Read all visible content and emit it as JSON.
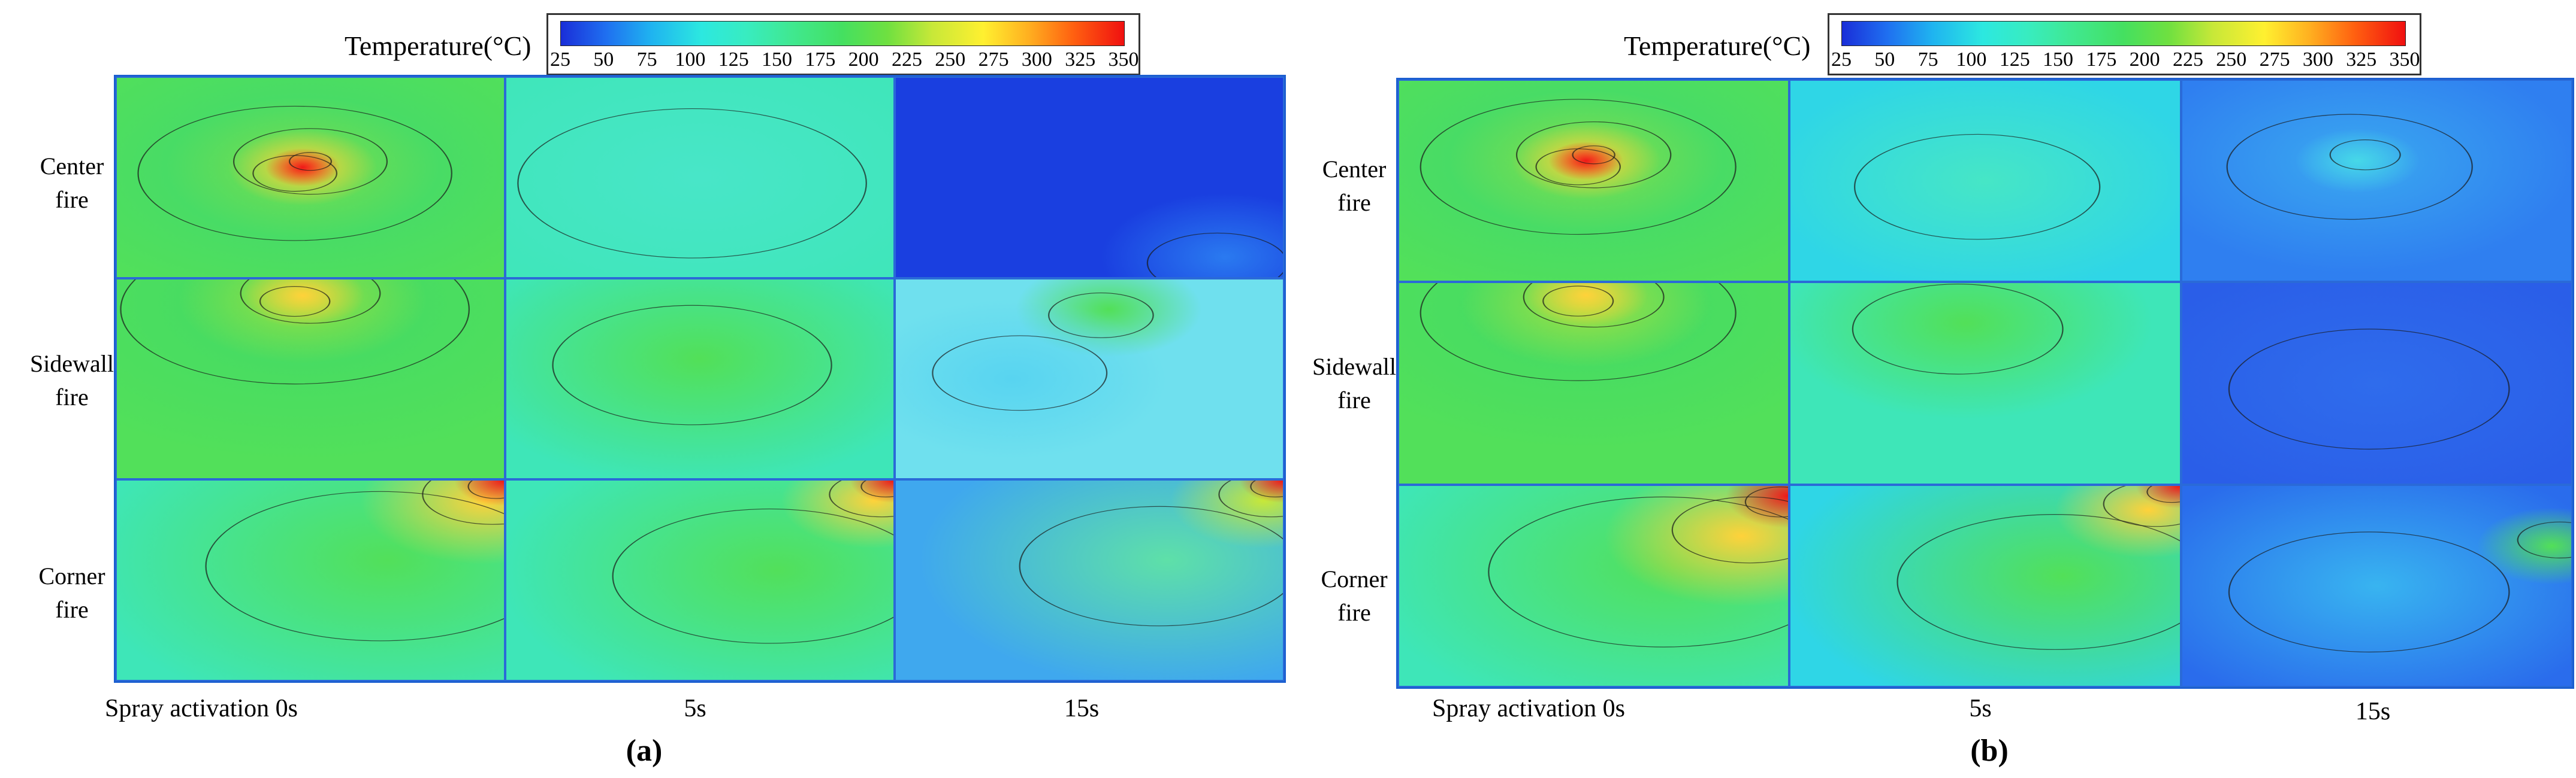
{
  "panels": [
    {
      "caption": "(a)",
      "colorbar": {
        "title": "Temperature(°C)",
        "ticks": [
          "25",
          "50",
          "75",
          "100",
          "125",
          "150",
          "175",
          "200",
          "225",
          "250",
          "275",
          "300",
          "325",
          "350"
        ]
      },
      "row_labels": [
        [
          "Center",
          "fire"
        ],
        [
          "Sidewall",
          "fire"
        ],
        [
          "Corner",
          "fire"
        ]
      ],
      "col_labels": [
        "Spray activation  0s",
        "5s",
        "15s"
      ]
    },
    {
      "caption": "(b)",
      "colorbar": {
        "title": "Temperature(°C)",
        "ticks": [
          "25",
          "50",
          "75",
          "100",
          "125",
          "150",
          "175",
          "200",
          "225",
          "250",
          "275",
          "300",
          "325",
          "350"
        ]
      },
      "row_labels": [
        [
          "Center",
          "fire"
        ],
        [
          "Sidewall",
          "fire"
        ],
        [
          "Corner",
          "fire"
        ]
      ],
      "col_labels": [
        "Spray activation  0s",
        "5s",
        "15s"
      ]
    }
  ],
  "colors": {
    "cold": "#1a3fe0",
    "cool": "#2fd6e6",
    "mild": "#3ee6b8",
    "warm": "#52e05a",
    "hot": "#ffd23a",
    "peak": "#f01818",
    "frame": "#1c5fd0"
  }
}
